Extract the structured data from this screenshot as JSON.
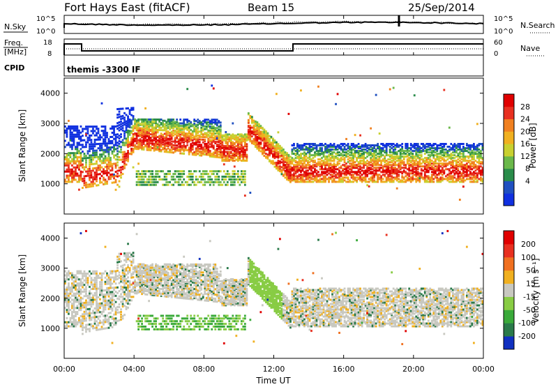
{
  "header": {
    "station": "Fort Hays East (fitACF)",
    "beam": "Beam 15",
    "date": "25/Sep/2014"
  },
  "noise_panel": {
    "left_label": "N.Sky",
    "right_label": "N.Search",
    "left_ticks": [
      "10^5",
      "10^0"
    ],
    "right_ticks": [
      "10^5",
      "10^0"
    ]
  },
  "freq_panel": {
    "left_label_1": "Freq.",
    "left_label_2": "[MHz]",
    "left_ticks": [
      "18",
      "8"
    ],
    "right_label": "Nave",
    "right_ticks": [
      "60",
      "0"
    ],
    "cpid_label": "CPID",
    "cpid_text": "themis -3300 IF"
  },
  "chart_data": [
    {
      "type": "heatmap",
      "title": "",
      "ylabel": "Slant Range [km]",
      "xlabel": "",
      "ylim": [
        0,
        4500
      ],
      "xlim": [
        "00:00",
        "24:00"
      ],
      "yticks": [
        "1000",
        "2000",
        "3000",
        "4000"
      ],
      "colorbar_label": "Power [dB]",
      "colorbar_ticks": [
        "4",
        "8",
        "12",
        "16",
        "20",
        "24",
        "28"
      ],
      "colorbar_colors": [
        "#1030e0",
        "#2050c0",
        "#2a8c4a",
        "#6ab84a",
        "#c8d030",
        "#f0b020",
        "#f08020",
        "#e83020",
        "#e00000"
      ]
    },
    {
      "type": "heatmap",
      "title": "",
      "ylabel": "Slant Range [km]",
      "xlabel": "Time UT",
      "ylim": [
        0,
        4500
      ],
      "xlim": [
        "00:00",
        "24:00"
      ],
      "yticks": [
        "1000",
        "2000",
        "3000",
        "4000"
      ],
      "xticks": [
        "00:00",
        "04:00",
        "08:00",
        "12:00",
        "16:00",
        "20:00",
        "00:00"
      ],
      "colorbar_label": "Velocity [m s⁻¹]",
      "colorbar_ticks": [
        "200",
        "100",
        "50",
        "15",
        "-15",
        "-50",
        "-100",
        "-200"
      ],
      "colorbar_colors": [
        "#1030c0",
        "#2a7a4a",
        "#3aaa3a",
        "#88cc44",
        "#c8c8c0",
        "#f0b020",
        "#f07020",
        "#e83020",
        "#e00000"
      ]
    }
  ],
  "x_axis": {
    "label": "Time UT",
    "ticks": [
      "00:00",
      "04:00",
      "08:00",
      "12:00",
      "16:00",
      "20:00",
      "00:00"
    ]
  }
}
